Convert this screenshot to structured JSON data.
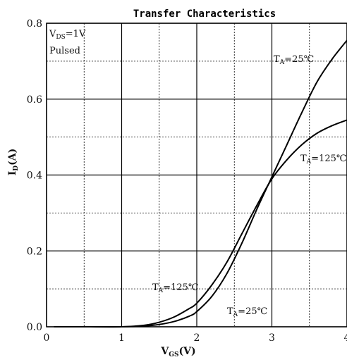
{
  "chart_data": {
    "type": "line",
    "title": "Transfer Characteristics",
    "xlabel": {
      "main": "V",
      "sub": "GS",
      "unit": "(V)"
    },
    "ylabel": {
      "main": "I",
      "sub": "D",
      "unit": "(A)"
    },
    "xlim": [
      0,
      4
    ],
    "ylim": [
      0,
      0.8
    ],
    "x_ticks": [
      "0",
      "1",
      "2",
      "3",
      "4"
    ],
    "y_ticks": [
      "0.0",
      "0.2",
      "0.4",
      "0.6",
      "0.8"
    ],
    "grid": true,
    "conditions": [
      {
        "main": "V",
        "sub": "DS",
        "rest": "=1V"
      },
      {
        "main": "Pulsed",
        "sub": "",
        "rest": ""
      }
    ],
    "series": [
      {
        "name": {
          "main": "T",
          "sub": "A",
          "rest": "=25℃"
        },
        "x": [
          0.1,
          0.5,
          1.0,
          1.3,
          1.5,
          1.7,
          1.9,
          2.0,
          2.2,
          2.4,
          2.6,
          2.8,
          3.0,
          3.2,
          3.4,
          3.6,
          3.8,
          4.0
        ],
        "y": [
          0.0,
          0.0,
          0.0,
          0.002,
          0.006,
          0.014,
          0.028,
          0.04,
          0.08,
          0.14,
          0.22,
          0.31,
          0.395,
          0.48,
          0.565,
          0.645,
          0.705,
          0.755
        ]
      },
      {
        "name": {
          "main": "T",
          "sub": "A",
          "rest": "=125℃"
        },
        "x": [
          0.1,
          0.5,
          1.0,
          1.3,
          1.5,
          1.7,
          1.9,
          2.0,
          2.2,
          2.4,
          2.6,
          2.8,
          3.0,
          3.2,
          3.4,
          3.6,
          3.8,
          4.0
        ],
        "y": [
          0.0,
          0.0,
          0.0,
          0.004,
          0.012,
          0.026,
          0.048,
          0.062,
          0.11,
          0.17,
          0.245,
          0.32,
          0.39,
          0.44,
          0.48,
          0.51,
          0.53,
          0.545
        ]
      }
    ]
  }
}
